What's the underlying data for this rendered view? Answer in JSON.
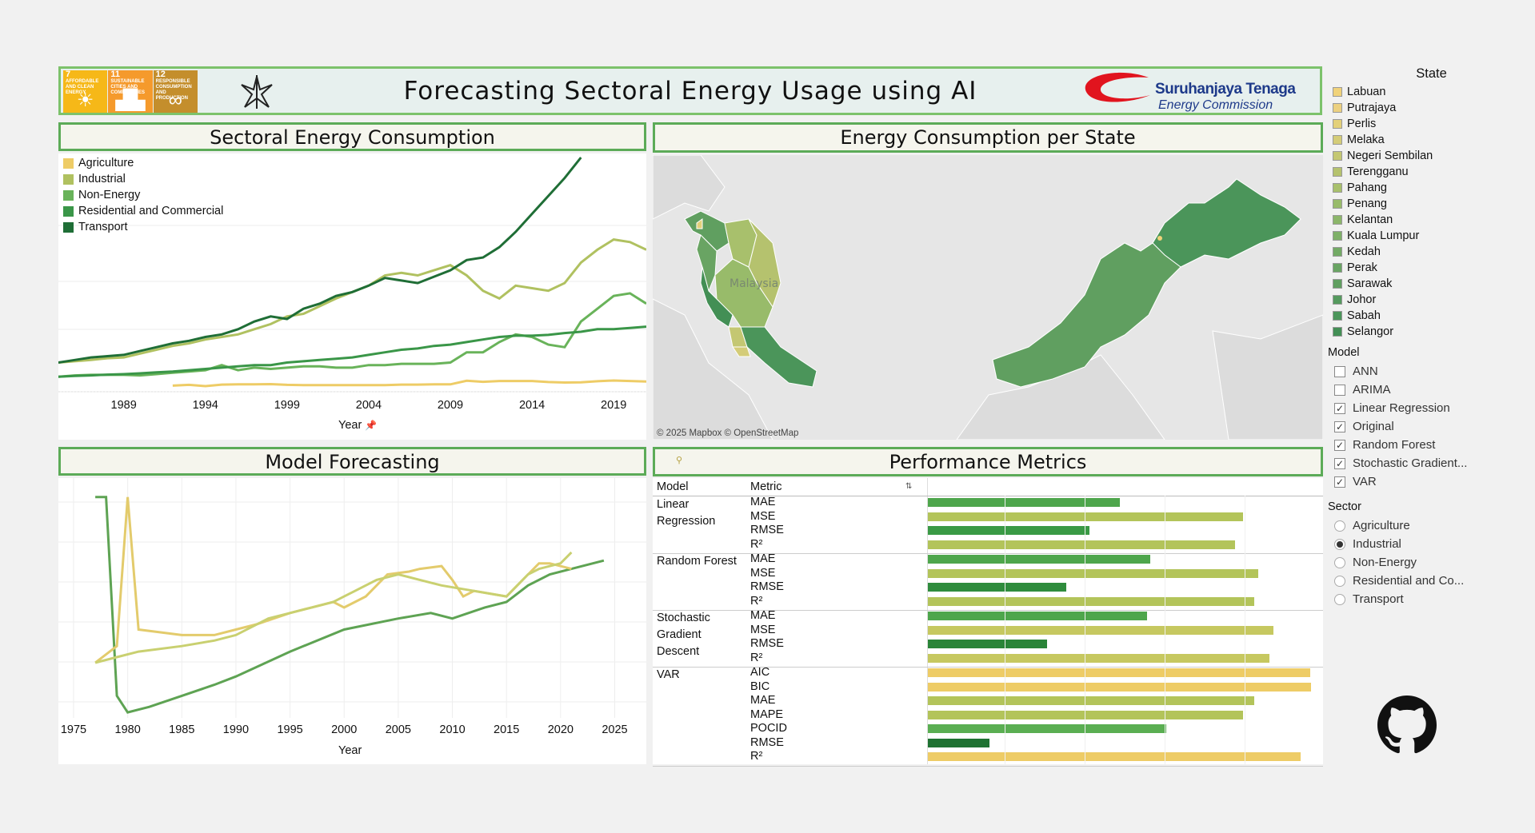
{
  "header": {
    "title": "Forecasting Sectoral Energy Usage using AI",
    "sdg": [
      {
        "num": "7",
        "text": "AFFORDABLE AND CLEAN ENERGY",
        "glyph": "☀",
        "color": "#f6b818"
      },
      {
        "num": "11",
        "text": "SUSTAINABLE CITIES AND COMMUNITIES",
        "glyph": "▟▙",
        "color": "#f59a2c"
      },
      {
        "num": "12",
        "text": "RESPONSIBLE CONSUMPTION AND PRODUCTION",
        "glyph": "∞",
        "color": "#c48e2c"
      }
    ],
    "logo_name": "Suruhanjaya Tenaga",
    "logo_sub": "Energy Commission"
  },
  "sectoral": {
    "title": "Sectoral Energy Consumption",
    "xlabel": "Year",
    "legend": [
      {
        "name": "Agriculture",
        "color": "#eecc66"
      },
      {
        "name": "Industrial",
        "color": "#b0c160"
      },
      {
        "name": "Non-Energy",
        "color": "#69b35a"
      },
      {
        "name": "Residential and Commercial",
        "color": "#3a9648"
      },
      {
        "name": "Transport",
        "color": "#1f6e36"
      }
    ],
    "ticks": [
      "1989",
      "1994",
      "1999",
      "2004",
      "2009",
      "2014",
      "2019"
    ]
  },
  "map": {
    "title": "Energy Consumption per State",
    "attribution": "© 2025 Mapbox © OpenStreetMap",
    "label": "Malaysia"
  },
  "forecast": {
    "title": "Model Forecasting",
    "xlabel": "Year",
    "ticks": [
      "1975",
      "1980",
      "1985",
      "1990",
      "1995",
      "2000",
      "2005",
      "2010",
      "2015",
      "2020",
      "2025"
    ]
  },
  "perf": {
    "title": "Performance Metrics",
    "col_model": "Model",
    "col_metric": "Metric",
    "sort_glyph": "⇅",
    "groups": [
      {
        "model": [
          "Linear",
          "Regression"
        ],
        "rows": [
          {
            "m": "MAE",
            "v": 0.5,
            "c": "#4ea64c"
          },
          {
            "m": "MSE",
            "v": 0.82,
            "c": "#b3c45a"
          },
          {
            "m": "RMSE",
            "v": 0.42,
            "c": "#3a9a45"
          },
          {
            "m": "R²",
            "v": 0.8,
            "c": "#b3c45a"
          }
        ]
      },
      {
        "model": [
          "Random Forest"
        ],
        "rows": [
          {
            "m": "MAE",
            "v": 0.58,
            "c": "#4ea64c"
          },
          {
            "m": "MSE",
            "v": 0.86,
            "c": "#b3c45a"
          },
          {
            "m": "RMSE",
            "v": 0.36,
            "c": "#2f8c3d"
          },
          {
            "m": "R²",
            "v": 0.85,
            "c": "#b3c45a"
          }
        ]
      },
      {
        "model": [
          "Stochastic",
          "Gradient",
          "Descent"
        ],
        "rows": [
          {
            "m": "MAE",
            "v": 0.57,
            "c": "#4ea64c"
          },
          {
            "m": "MSE",
            "v": 0.9,
            "c": "#c6c860"
          },
          {
            "m": "RMSE",
            "v": 0.31,
            "c": "#2a8438"
          },
          {
            "m": "R²",
            "v": 0.89,
            "c": "#c6c860"
          }
        ]
      },
      {
        "model": [
          "VAR"
        ],
        "rows": [
          {
            "m": "AIC",
            "v": 0.995,
            "c": "#eecc66"
          },
          {
            "m": "BIC",
            "v": 0.998,
            "c": "#eecc66"
          },
          {
            "m": "MAE",
            "v": 0.85,
            "c": "#b3c45a"
          },
          {
            "m": "MAPE",
            "v": 0.82,
            "c": "#b3c45a"
          },
          {
            "m": "POCID",
            "v": 0.62,
            "c": "#5aae52"
          },
          {
            "m": "RMSE",
            "v": 0.16,
            "c": "#1f7232"
          },
          {
            "m": "R²",
            "v": 0.97,
            "c": "#eecc66"
          }
        ]
      }
    ]
  },
  "states": {
    "title": "State",
    "items": [
      {
        "name": "Labuan",
        "color": "#f0d27a"
      },
      {
        "name": "Putrajaya",
        "color": "#ecd080"
      },
      {
        "name": "Perlis",
        "color": "#e3d07a"
      },
      {
        "name": "Melaka",
        "color": "#d4cc78"
      },
      {
        "name": "Negeri Sembilan",
        "color": "#c4c772"
      },
      {
        "name": "Terengganu",
        "color": "#b5c26e"
      },
      {
        "name": "Pahang",
        "color": "#a8c06c"
      },
      {
        "name": "Penang",
        "color": "#98bb6a"
      },
      {
        "name": "Kelantan",
        "color": "#8cb66a"
      },
      {
        "name": "Kuala Lumpur",
        "color": "#7eb068"
      },
      {
        "name": "Kedah",
        "color": "#73aa65"
      },
      {
        "name": "Perak",
        "color": "#69a463"
      },
      {
        "name": "Sarawak",
        "color": "#609f60"
      },
      {
        "name": "Johor",
        "color": "#559a5e"
      },
      {
        "name": "Sabah",
        "color": "#4b955a"
      },
      {
        "name": "Selangor",
        "color": "#438f55"
      }
    ]
  },
  "model_filter": {
    "title": "Model",
    "items": [
      {
        "name": "ANN",
        "checked": false
      },
      {
        "name": "ARIMA",
        "checked": false
      },
      {
        "name": "Linear Regression",
        "checked": true
      },
      {
        "name": "Original",
        "checked": true
      },
      {
        "name": "Random Forest",
        "checked": true
      },
      {
        "name": "Stochastic Gradient...",
        "checked": true
      },
      {
        "name": "VAR",
        "checked": true
      }
    ]
  },
  "sector_filter": {
    "title": "Sector",
    "selected": "Industrial",
    "items": [
      "Agriculture",
      "Industrial",
      "Non-Energy",
      "Residential and Co...",
      "Transport"
    ]
  },
  "chart_data": [
    {
      "type": "line",
      "title": "Sectoral Energy Consumption",
      "xlabel": "Year",
      "ylabel": "",
      "x": [
        1985,
        1986,
        1987,
        1988,
        1989,
        1990,
        1991,
        1992,
        1993,
        1994,
        1995,
        1996,
        1997,
        1998,
        1999,
        2000,
        2001,
        2002,
        2003,
        2004,
        2005,
        2006,
        2007,
        2008,
        2009,
        2010,
        2011,
        2012,
        2013,
        2014,
        2015,
        2016,
        2017,
        2018,
        2019,
        2020,
        2021
      ],
      "series": [
        {
          "name": "Agriculture",
          "color": "#eecc66",
          "values": [
            null,
            null,
            null,
            null,
            null,
            null,
            null,
            3,
            3.3,
            2.8,
            3.4,
            3.5,
            3.5,
            3.6,
            3.3,
            3.2,
            3.2,
            3.2,
            3.2,
            3.2,
            3.2,
            3.4,
            3.4,
            3.5,
            3.5,
            4.9,
            4.5,
            4.8,
            4.8,
            4.8,
            4.4,
            4.2,
            4.3,
            4.7,
            5,
            4.8,
            4.6
          ]
        },
        {
          "name": "Industrial",
          "color": "#b0c160",
          "values": [
            12,
            12.5,
            13,
            13.7,
            14,
            15.5,
            17,
            18.5,
            19.5,
            21,
            22,
            23,
            25,
            27,
            30,
            31,
            34,
            37,
            39.5,
            42,
            46,
            47,
            46,
            48,
            50,
            46,
            40,
            37,
            42,
            41,
            40,
            43,
            51,
            56,
            60,
            59,
            56
          ]
        },
        {
          "name": "Non-Energy",
          "color": "#69b35a",
          "values": [
            6.5,
            7,
            7.2,
            7.2,
            7.2,
            7,
            7.5,
            8,
            8.5,
            9,
            11,
            9,
            10,
            9.5,
            10,
            10.5,
            10.5,
            10,
            10,
            11,
            11,
            11.5,
            11.5,
            11.5,
            12,
            16,
            16,
            20,
            23,
            22,
            19,
            18,
            28,
            33,
            38,
            39,
            35
          ]
        },
        {
          "name": "Residential and Commercial",
          "color": "#3a9648",
          "values": [
            6.5,
            6.8,
            7,
            7.3,
            7.5,
            7.8,
            8.2,
            8.5,
            9,
            9.5,
            10,
            10.5,
            11,
            11,
            12,
            12.5,
            13,
            13.5,
            14,
            15,
            16,
            17,
            17.5,
            18.5,
            19,
            20,
            21,
            22,
            22.5,
            22.5,
            22.8,
            23.5,
            24,
            25,
            25,
            25.5,
            26
          ]
        },
        {
          "name": "Transport",
          "color": "#1f6e36",
          "values": [
            12,
            13,
            14,
            14.5,
            15,
            16.5,
            18,
            19.5,
            20.5,
            22,
            23,
            25,
            28,
            30,
            29,
            33,
            35,
            38,
            39.5,
            42,
            45,
            44,
            43,
            45.5,
            48,
            52,
            53,
            57,
            63,
            70,
            77,
            84,
            92,
            null,
            null,
            null,
            null
          ]
        }
      ]
    },
    {
      "type": "line",
      "title": "Model Forecasting",
      "xlabel": "Year",
      "ylabel": "",
      "series": [
        {
          "name": "",
          "color": "#5ea353",
          "x": [
            1977,
            1978,
            1979,
            1980,
            1982,
            1985,
            1988,
            1990,
            1995,
            2000,
            2005,
            2008,
            2010,
            2013,
            2015,
            2017,
            2019,
            2021,
            2024
          ],
          "values": [
            40,
            40,
            4,
            1,
            2,
            4,
            6,
            7.5,
            12,
            16,
            18,
            19,
            18,
            20,
            21,
            24,
            26,
            27,
            28.5
          ]
        },
        {
          "name": "",
          "color": "#e3cb6c",
          "x": [
            1977,
            1979,
            1980,
            1981,
            1985,
            1988,
            1990,
            1992,
            1995,
            1997,
            1999,
            2000,
            2001,
            2002,
            2004,
            2006,
            2007,
            2009,
            2010,
            2011,
            2012,
            2015,
            2017,
            2018,
            2019,
            2021
          ],
          "values": [
            10,
            13,
            40,
            16,
            15,
            15,
            16,
            17,
            19,
            20,
            21,
            20,
            21,
            22,
            26,
            26.5,
            27,
            27.5,
            25,
            22,
            23,
            22,
            26,
            28,
            28,
            27
          ]
        },
        {
          "name": "",
          "color": "#c9d070",
          "x": [
            1977,
            1979,
            1981,
            1985,
            1988,
            1990,
            1993,
            1995,
            1997,
            1999,
            2000,
            2001,
            2003,
            2005,
            2007,
            2009,
            2012,
            2015,
            2017,
            2018,
            2020,
            2021
          ],
          "values": [
            10,
            11,
            12,
            13,
            14,
            15,
            18,
            19,
            20,
            21,
            22,
            23,
            25,
            26,
            25,
            24,
            23,
            22,
            26,
            27,
            28,
            30
          ]
        }
      ],
      "xlim": [
        1975,
        2026
      ]
    }
  ]
}
